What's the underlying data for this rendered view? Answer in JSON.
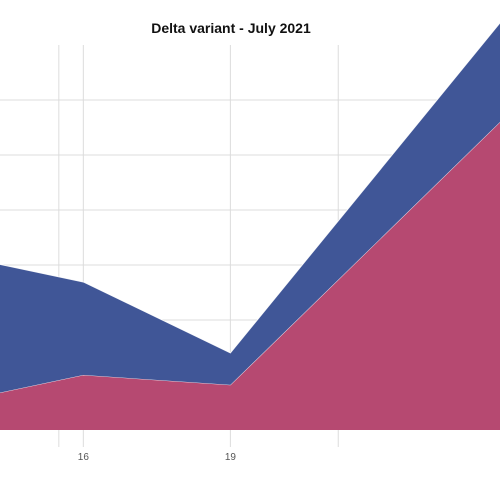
{
  "chart_data": {
    "type": "area",
    "title": "Delta variant - July 2021",
    "xlabel": "",
    "ylabel": "",
    "grid": true,
    "legend": "none",
    "stacked": true,
    "x": [
      14.3,
      16,
      19,
      24.5
    ],
    "x_tick_labels": [
      "16",
      "19"
    ],
    "x_tick_values": [
      16,
      19
    ],
    "x_unlabeled_gridlines": [
      13,
      15.5,
      21.2
    ],
    "xlim": [
      14.3,
      24.5
    ],
    "ylim": [
      0,
      7
    ],
    "y_gridlines": [
      1,
      2,
      3,
      4,
      5,
      6
    ],
    "series": [
      {
        "color": "#b5456e",
        "values": [
          0.68,
          1.0,
          0.82,
          5.6
        ]
      },
      {
        "color": "#3c5395",
        "values": [
          2.33,
          1.69,
          0.58,
          1.8
        ]
      }
    ]
  }
}
